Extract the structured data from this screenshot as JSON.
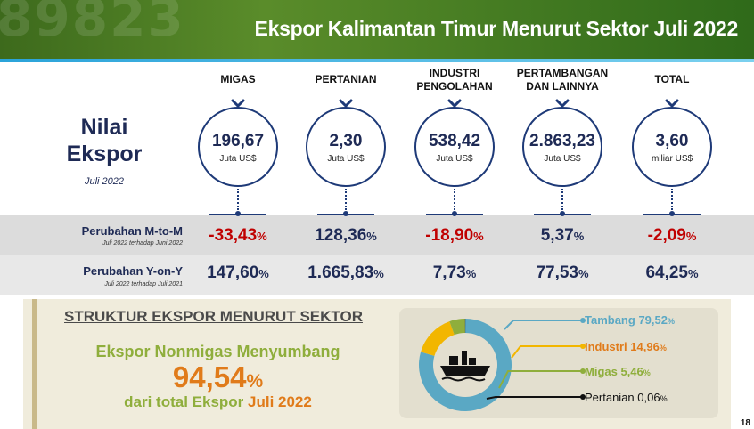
{
  "header": {
    "title": "Ekspor Kalimantan Timur Menurut Sektor Juli 2022",
    "decor_text": "89823"
  },
  "nilai": {
    "line1": "Nilai",
    "line2": "Ekspor",
    "sub": "Juli 2022"
  },
  "sectors": [
    {
      "label_1": "MIGAS",
      "label_2": "",
      "value": "196,67",
      "unit": "Juta US$",
      "mtm": "-33,43",
      "yoy": "147,60"
    },
    {
      "label_1": "PERTANIAN",
      "label_2": "",
      "value": "2,30",
      "unit": "Juta US$",
      "mtm": "128,36",
      "yoy": "1.665,83"
    },
    {
      "label_1": "INDUSTRI",
      "label_2": "PENGOLAHAN",
      "value": "538,42",
      "unit": "Juta US$",
      "mtm": "-18,90",
      "yoy": "7,73"
    },
    {
      "label_1": "PERTAMBANGAN",
      "label_2": "DAN LAINNYA",
      "value": "2.863,23",
      "unit": "Juta US$",
      "mtm": "5,37",
      "yoy": "77,53"
    },
    {
      "label_1": "TOTAL",
      "label_2": "",
      "value": "3,60",
      "unit": "miliar US$",
      "mtm": "-2,09",
      "yoy": "64,25"
    }
  ],
  "pct_symbol": "%",
  "rows": {
    "mtm_label": "Perubahan M-to-M",
    "mtm_sub": "Juli 2022 terhadap Juni 2022",
    "yoy_label": "Perubahan Y-on-Y",
    "yoy_sub": "Juli 2022 terhadap Juli 2021"
  },
  "structure": {
    "title": "STRUKTUR EKSPOR MENURUT SEKTOR",
    "line1": "Ekspor Nonmigas Menyumbang",
    "big_value": "94,54",
    "line3_prefix": "dari total Ekspor",
    "line3_highlight": "Juli 2022"
  },
  "donut": {
    "icon": "cargo-ship-icon",
    "segments": [
      {
        "name": "Tambang",
        "value": "79,52",
        "share": 79.52,
        "color": "#5aa8c4"
      },
      {
        "name": "Industri",
        "value": "14,96",
        "share": 14.96,
        "color": "#f2b600"
      },
      {
        "name": "Migas",
        "value": "5,46",
        "share": 5.46,
        "color": "#8fae3c"
      },
      {
        "name": "Pertanian",
        "value": "0,06",
        "share": 0.06,
        "color": "#111111"
      }
    ]
  },
  "page_number": "18"
}
